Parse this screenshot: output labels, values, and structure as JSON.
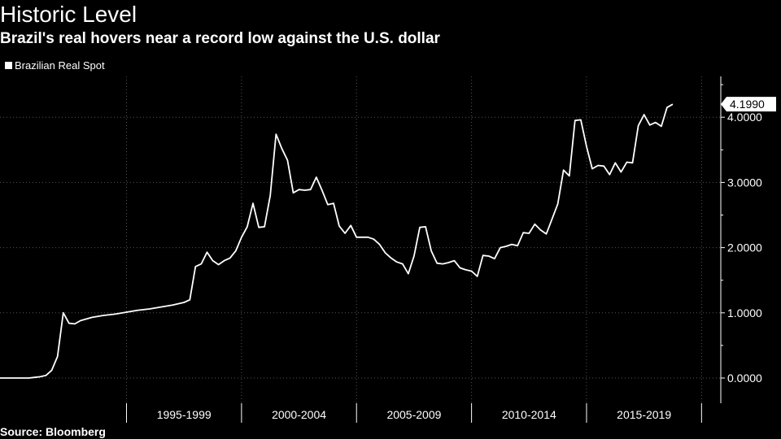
{
  "header": {
    "title": "Historic Level",
    "subtitle": "Brazil's real hovers near a record low against the U.S. dollar"
  },
  "legend": {
    "label": "Brazilian Real Spot",
    "placement": "top-left"
  },
  "footer": {
    "source": "Source: Bloomberg"
  },
  "colors": {
    "background": "#000000",
    "line": "#ffffff",
    "grid": "#555555",
    "text": "#ffffff"
  },
  "chart_data": {
    "type": "line",
    "title": "Historic Level",
    "subtitle": "Brazil's real hovers near a record low against the U.S. dollar",
    "xlabel": "",
    "ylabel": "",
    "grid": true,
    "y_axis_side": "right",
    "ylim": [
      0,
      4.6
    ],
    "xlim": [
      1989.5,
      2020.2
    ],
    "y_ticks": [
      0,
      1,
      2,
      3,
      4
    ],
    "y_tick_labels": [
      "0.0000",
      "1.0000",
      "2.0000",
      "3.0000",
      "4.0000"
    ],
    "x_tick_labels": [
      "1995-1999",
      "2000-2004",
      "2005-2009",
      "2010-2014",
      "2015-2019"
    ],
    "x_label_ranges": [
      [
        1995,
        2000
      ],
      [
        2000,
        2005
      ],
      [
        2005,
        2010
      ],
      [
        2010,
        2015
      ],
      [
        2015,
        2020
      ]
    ],
    "last_value_label": "4.1990",
    "series": [
      {
        "name": "Brazilian Real Spot",
        "points": [
          [
            1989.5,
            0.0
          ],
          [
            1990.0,
            0.0
          ],
          [
            1990.25,
            0.0
          ],
          [
            1990.5,
            0.0
          ],
          [
            1990.75,
            0.0
          ],
          [
            1991.0,
            0.01
          ],
          [
            1991.25,
            0.02
          ],
          [
            1991.5,
            0.04
          ],
          [
            1991.75,
            0.12
          ],
          [
            1992.0,
            0.33
          ],
          [
            1992.25,
            1.0
          ],
          [
            1992.5,
            0.84
          ],
          [
            1992.75,
            0.83
          ],
          [
            1993.0,
            0.88
          ],
          [
            1993.5,
            0.93
          ],
          [
            1994.0,
            0.96
          ],
          [
            1994.5,
            0.98
          ],
          [
            1995.0,
            1.01
          ],
          [
            1995.5,
            1.04
          ],
          [
            1996.0,
            1.06
          ],
          [
            1996.5,
            1.09
          ],
          [
            1997.0,
            1.12
          ],
          [
            1997.5,
            1.16
          ],
          [
            1997.75,
            1.2
          ],
          [
            1998.0,
            1.71
          ],
          [
            1998.25,
            1.75
          ],
          [
            1998.5,
            1.93
          ],
          [
            1998.75,
            1.8
          ],
          [
            1999.0,
            1.74
          ],
          [
            1999.25,
            1.8
          ],
          [
            1999.5,
            1.84
          ],
          [
            1999.75,
            1.95
          ],
          [
            2000.0,
            2.16
          ],
          [
            2000.25,
            2.32
          ],
          [
            2000.5,
            2.68
          ],
          [
            2000.75,
            2.31
          ],
          [
            2001.0,
            2.32
          ],
          [
            2001.25,
            2.8
          ],
          [
            2001.5,
            3.74
          ],
          [
            2001.75,
            3.52
          ],
          [
            2002.0,
            3.34
          ],
          [
            2002.25,
            2.84
          ],
          [
            2002.5,
            2.89
          ],
          [
            2002.75,
            2.88
          ],
          [
            2003.0,
            2.89
          ],
          [
            2003.25,
            3.08
          ],
          [
            2003.5,
            2.88
          ],
          [
            2003.75,
            2.66
          ],
          [
            2004.0,
            2.68
          ],
          [
            2004.25,
            2.33
          ],
          [
            2004.5,
            2.22
          ],
          [
            2004.75,
            2.34
          ],
          [
            2005.0,
            2.16
          ],
          [
            2005.25,
            2.16
          ],
          [
            2005.5,
            2.16
          ],
          [
            2005.75,
            2.13
          ],
          [
            2006.0,
            2.05
          ],
          [
            2006.25,
            1.92
          ],
          [
            2006.5,
            1.84
          ],
          [
            2006.75,
            1.78
          ],
          [
            2007.0,
            1.75
          ],
          [
            2007.25,
            1.6
          ],
          [
            2007.5,
            1.87
          ],
          [
            2007.75,
            2.31
          ],
          [
            2008.0,
            2.32
          ],
          [
            2008.25,
            1.95
          ],
          [
            2008.5,
            1.76
          ],
          [
            2008.75,
            1.75
          ],
          [
            2009.0,
            1.77
          ],
          [
            2009.25,
            1.8
          ],
          [
            2009.5,
            1.69
          ],
          [
            2009.75,
            1.66
          ],
          [
            2010.0,
            1.64
          ],
          [
            2010.25,
            1.56
          ],
          [
            2010.5,
            1.88
          ],
          [
            2010.75,
            1.87
          ],
          [
            2011.0,
            1.83
          ],
          [
            2011.25,
            2.0
          ],
          [
            2011.5,
            2.02
          ],
          [
            2011.75,
            2.05
          ],
          [
            2012.0,
            2.03
          ],
          [
            2012.25,
            2.23
          ],
          [
            2012.5,
            2.22
          ],
          [
            2012.75,
            2.36
          ],
          [
            2013.0,
            2.27
          ],
          [
            2013.25,
            2.21
          ],
          [
            2013.5,
            2.44
          ],
          [
            2013.75,
            2.67
          ],
          [
            2014.0,
            3.19
          ],
          [
            2014.25,
            3.1
          ],
          [
            2014.5,
            3.95
          ],
          [
            2014.75,
            3.96
          ],
          [
            2015.0,
            3.55
          ],
          [
            2015.25,
            3.21
          ],
          [
            2015.5,
            3.26
          ],
          [
            2015.75,
            3.25
          ],
          [
            2016.0,
            3.12
          ],
          [
            2016.25,
            3.3
          ],
          [
            2016.5,
            3.16
          ],
          [
            2016.75,
            3.31
          ],
          [
            2017.0,
            3.3
          ],
          [
            2017.25,
            3.87
          ],
          [
            2017.5,
            4.04
          ],
          [
            2017.75,
            3.88
          ],
          [
            2018.0,
            3.92
          ],
          [
            2018.25,
            3.86
          ],
          [
            2018.5,
            4.15
          ],
          [
            2018.75,
            4.2
          ]
        ]
      }
    ]
  }
}
